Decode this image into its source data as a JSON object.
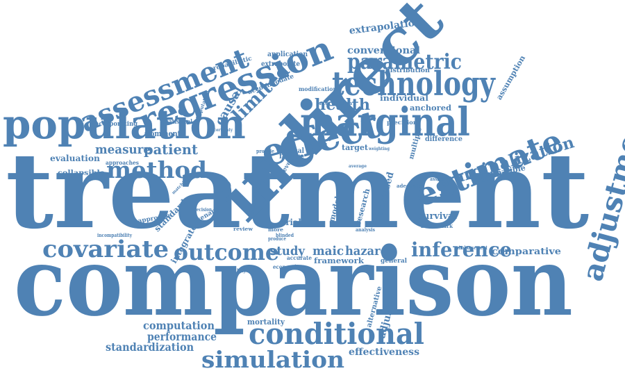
{
  "accent_color": "#4f82b4",
  "background_color": "#ffffff",
  "words": {
    "treatment": "treatment",
    "comparison": "comparison",
    "indirect": "indirect",
    "population": "population",
    "regression": "regression",
    "assessment": "assessment",
    "technology": "technology",
    "marginal": "marginal",
    "effect": "effect",
    "estimate": "estimate",
    "adjustment": "adjustment",
    "conditional": "conditional",
    "simulation": "simulation",
    "method": "method",
    "covariate": "covariate",
    "outcome": "outcome",
    "inference": "inference",
    "marginalization": "marginalization",
    "parametric": "parametric",
    "health": "health",
    "measure": "measure",
    "patient": "patient",
    "study": "study",
    "maic": "maic",
    "hazard": "hazard",
    "limited": "limited",
    "causal": "causal",
    "conventional": "conventional",
    "extrapolation": "extrapolation",
    "application": "application",
    "extrapolate": "extrapolate",
    "comparative": "comparative",
    "computation": "computation",
    "performance": "performance",
    "standardization": "standardization",
    "effectiveness": "effectiveness",
    "mortality": "mortality",
    "adjusted": "adjusted",
    "alternative": "alternative",
    "framework": "framework",
    "survival": "survival",
    "benchmark": "benchmark",
    "general": "general",
    "compatible": "compatible",
    "assumption": "assumption",
    "individual": "individual",
    "anchored": "anchored",
    "distribution": "distribution",
    "modification": "modification",
    "precision": "precision",
    "difference": "difference",
    "target": "target",
    "multiple": "multiple",
    "unbiased": "unbiased",
    "research": "research",
    "model": "model",
    "trial": "trial",
    "interest": "interest",
    "standard": "standard",
    "integrate": "integrate",
    "approach": "approach",
    "evaluation": "evaluation",
    "approaches": "approaches",
    "collapsible": "collapsible",
    "incorporating": "incorporating",
    "comment": "comment",
    "statistical": "statistical",
    "imputation": "imputation",
    "probabilistic": "probabilistic",
    "accommodate": "accommodate",
    "clinical": "clinical",
    "failure": "failure",
    "level": "level",
    "provide": "provide",
    "bayesian": "bayesian",
    "review": "review",
    "more": "more",
    "accurate": "accurate",
    "economic": "economic",
    "incompatibility": "incompatibility",
    "reimbursement": "reimbursement",
    "adequate": "adequate",
    "assessing": "assessing",
    "analysis": "analysis",
    "blinded": "blinded",
    "produce": "produce",
    "decision": "decision",
    "matching": "matching",
    "scenario": "scenario",
    "intervention": "intervention",
    "uncertainty": "uncertainty",
    "weighting": "weighting",
    "average": "average"
  }
}
